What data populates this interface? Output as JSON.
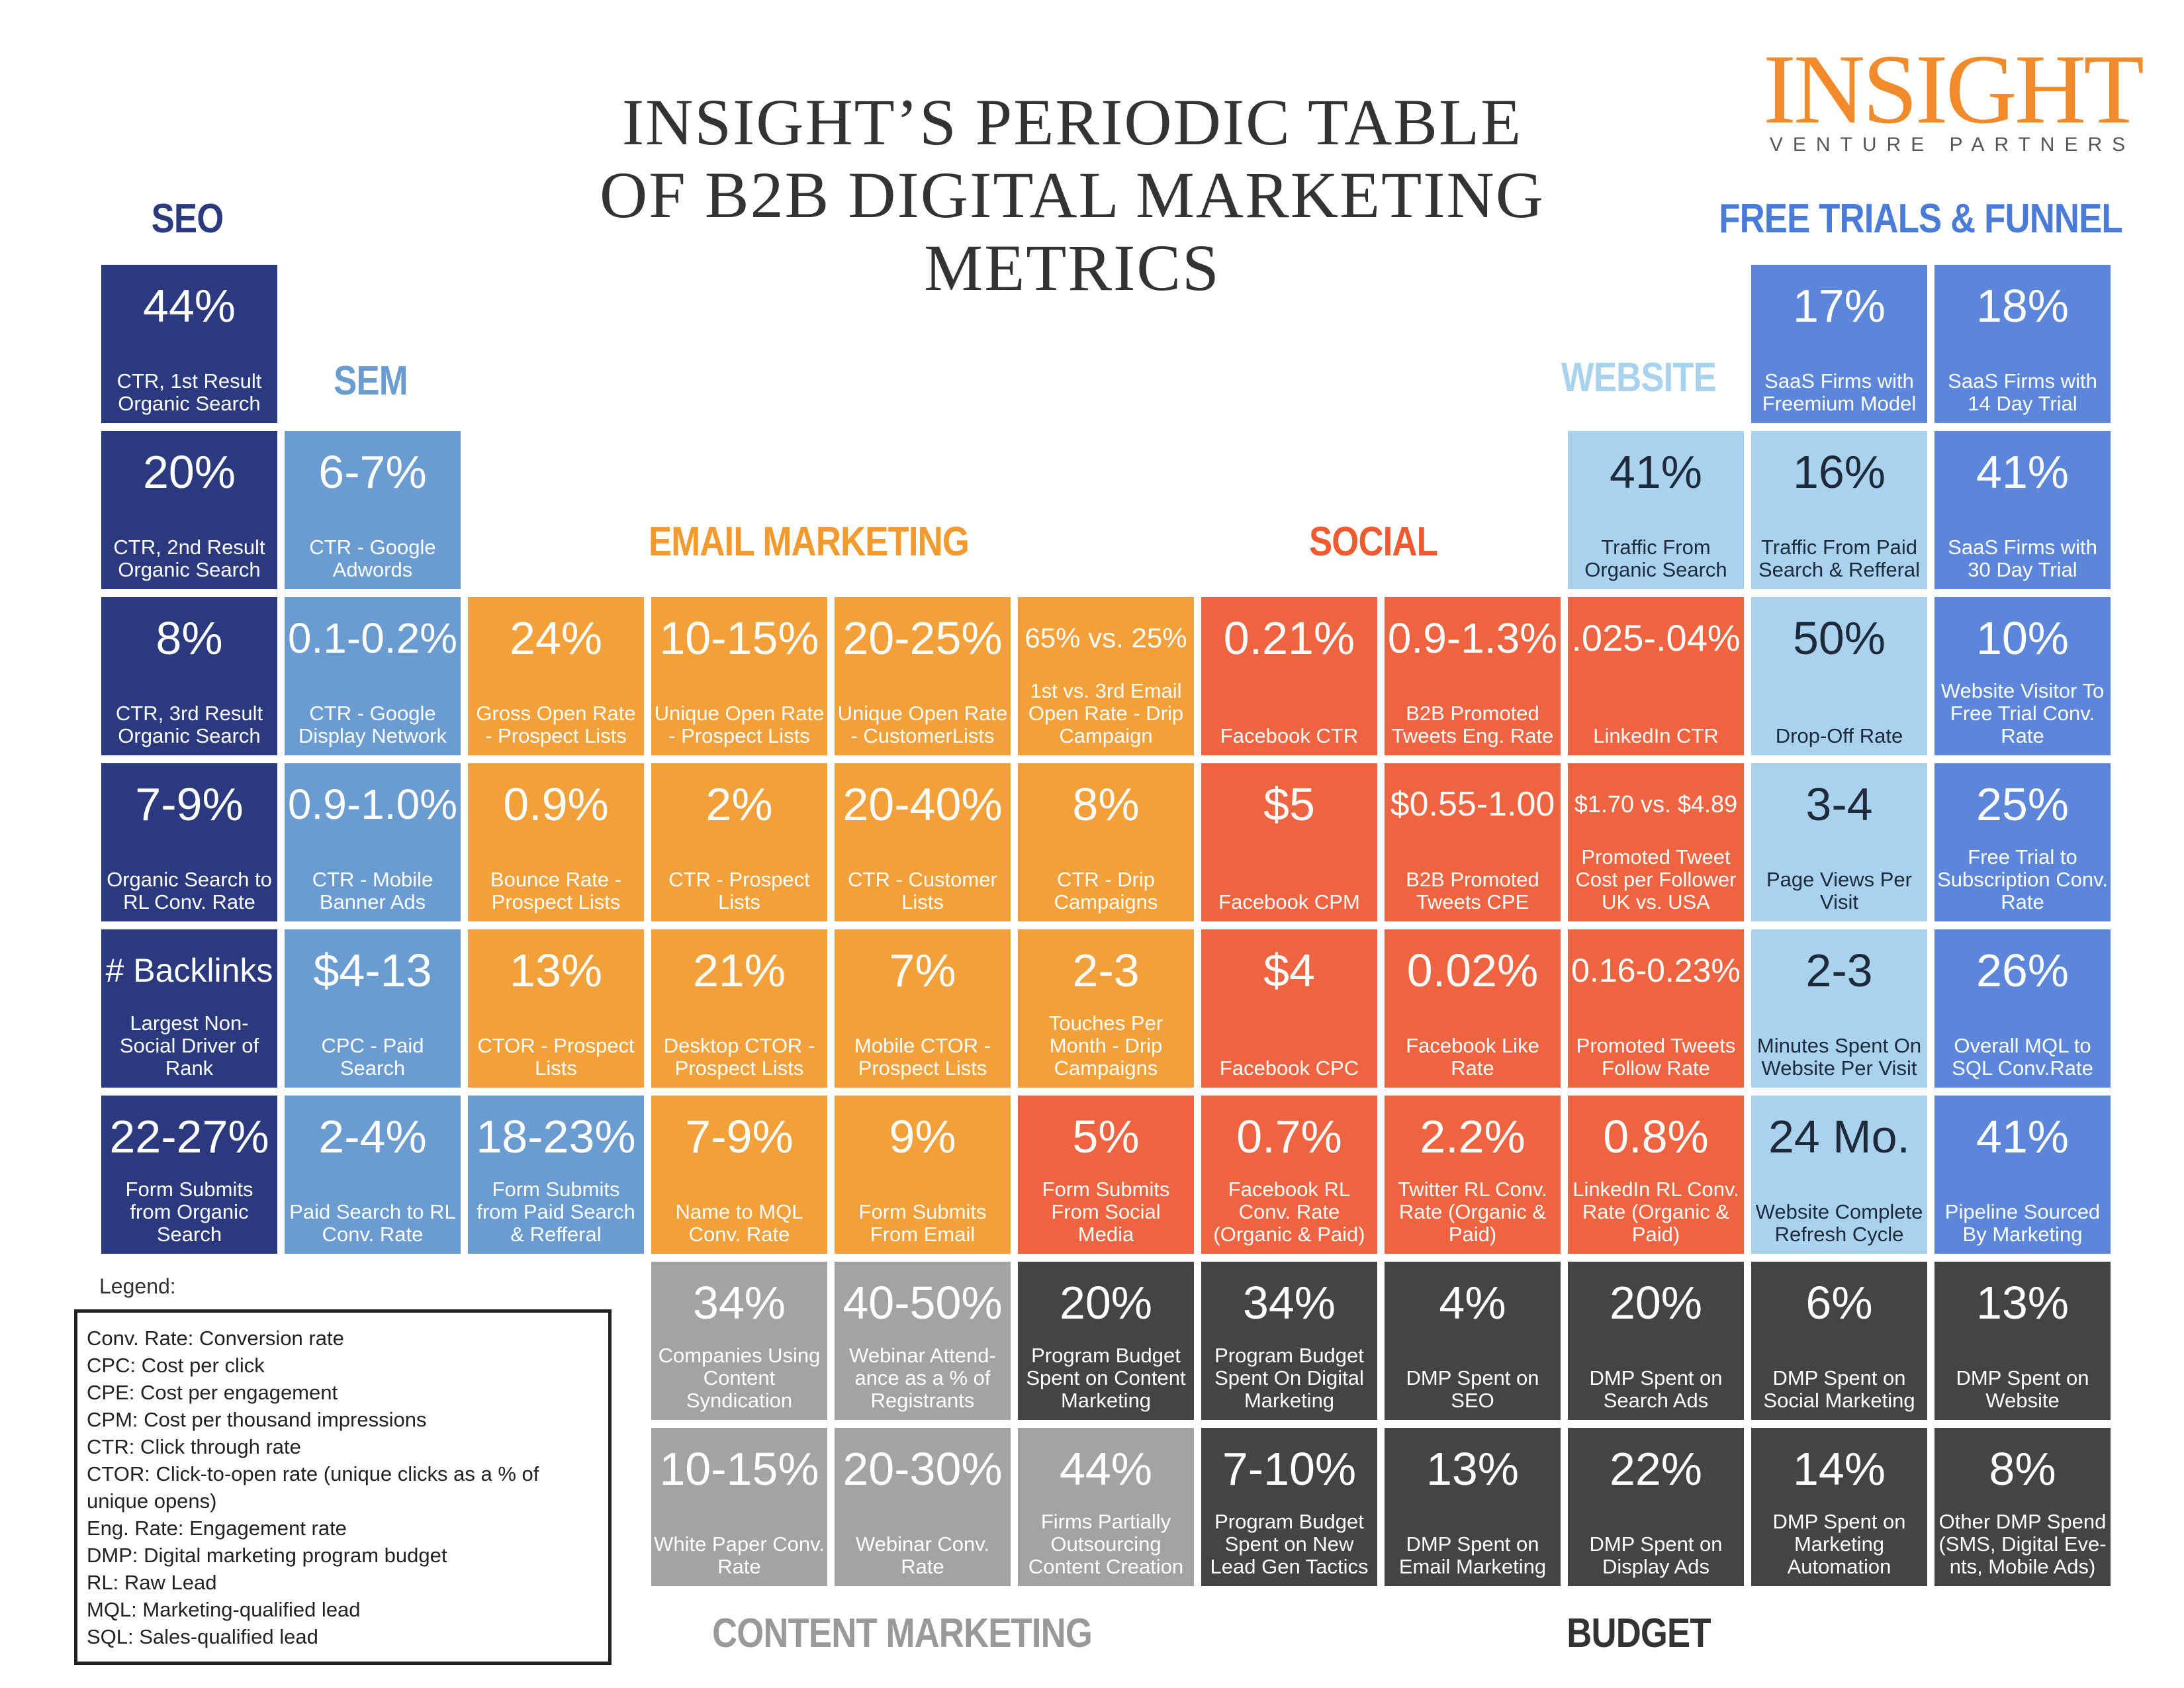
{
  "title": [
    "INSIGHT’S PERIODIC TABLE",
    "OF B2B DIGITAL MARKETING",
    "METRICS"
  ],
  "logo": {
    "name": "INSIGHT",
    "tagline": "VENTURE PARTNERS"
  },
  "headings": {
    "seo": "SEO",
    "sem": "SEM",
    "email": "EMAIL MARKETING",
    "social": "SOCIAL",
    "website": "WEBSITE",
    "funnel": "FREE TRIALS & FUNNEL",
    "content": "CONTENT MARKETING",
    "budget": "BUDGET"
  },
  "cells": [
    {
      "value": "44%",
      "label": "CTR, 1st Result Organic Search"
    },
    {
      "value": "17%",
      "label": "SaaS Firms with Freemium Model"
    },
    {
      "value": "18%",
      "label": "SaaS Firms with 14 Day Trial"
    },
    {
      "value": "20%",
      "label": "CTR, 2nd Result Organic Search"
    },
    {
      "value": "6-7%",
      "label": "CTR - Google Adwords"
    },
    {
      "value": "41%",
      "label": "Traffic From Organic Search"
    },
    {
      "value": "16%",
      "label": "Traffic From Paid Search & Refferal"
    },
    {
      "value": "41%",
      "label": "SaaS Firms with 30 Day Trial"
    },
    {
      "value": "8%",
      "label": "CTR, 3rd Result Organic Search"
    },
    {
      "value": "0.1-0.2%",
      "label": "CTR - Google Display Network"
    },
    {
      "value": "24%",
      "label": "Gross Open Rate - Prospect Lists"
    },
    {
      "value": "10-15%",
      "label": "Unique Open Rate - Prospect Lists"
    },
    {
      "value": "20-25%",
      "label": "Unique Open Rate - CustomerLists"
    },
    {
      "value": "65% vs. 25%",
      "label": "1st vs. 3rd Email Open Rate - Drip Campaign"
    },
    {
      "value": "0.21%",
      "label": "Facebook CTR"
    },
    {
      "value": "0.9-1.3%",
      "label": "B2B Promoted Tweets Eng. Rate"
    },
    {
      "value": ".025-.04%",
      "label": "LinkedIn CTR"
    },
    {
      "value": "50%",
      "label": "Drop-Off Rate"
    },
    {
      "value": "10%",
      "label": "Website Visitor To Free Trial Conv. Rate"
    },
    {
      "value": "7-9%",
      "label": "Organic Search to RL Conv. Rate"
    },
    {
      "value": "0.9-1.0%",
      "label": "CTR - Mobile Banner Ads"
    },
    {
      "value": "0.9%",
      "label": "Bounce Rate - Prospect Lists"
    },
    {
      "value": "2%",
      "label": "CTR - Prospect Lists"
    },
    {
      "value": "20-40%",
      "label": "CTR - Customer Lists"
    },
    {
      "value": "8%",
      "label": "CTR - Drip Campaigns"
    },
    {
      "value": "$5",
      "label": "Facebook CPM"
    },
    {
      "value": "$0.55-1.00",
      "label": "B2B Promoted Tweets CPE"
    },
    {
      "value": "$1.70 vs. $4.89",
      "label": "Promoted Tweet Cost per Follower UK vs. USA"
    },
    {
      "value": "3-4",
      "label": "Page Views Per Visit"
    },
    {
      "value": "25%",
      "label": "Free Trial to Subscription Conv. Rate"
    },
    {
      "value": "# Backlinks",
      "label": "Largest Non-Social Driver of Rank"
    },
    {
      "value": "$4-13",
      "label": "CPC - Paid Search"
    },
    {
      "value": "13%",
      "label": "CTOR - Prospect Lists"
    },
    {
      "value": "21%",
      "label": "Desktop CTOR - Prospect Lists"
    },
    {
      "value": "7%",
      "label": "Mobile CTOR - Prospect Lists"
    },
    {
      "value": "2-3",
      "label": "Touches Per Month - Drip Campaigns"
    },
    {
      "value": "$4",
      "label": "Facebook CPC"
    },
    {
      "value": "0.02%",
      "label": "Facebook Like Rate"
    },
    {
      "value": "0.16-0.23%",
      "label": "Promoted Tweets Follow Rate"
    },
    {
      "value": "2-3",
      "label": "Minutes Spent On Website Per Visit"
    },
    {
      "value": "26%",
      "label": "Overall MQL to SQL Conv.Rate"
    },
    {
      "value": "22-27%",
      "label": "Form Submits from Organic Search"
    },
    {
      "value": "2-4%",
      "label": "Paid Search to RL Conv. Rate"
    },
    {
      "value": "18-23%",
      "label": "Form Submits from Paid Search & Refferal"
    },
    {
      "value": "7-9%",
      "label": "Name to MQL Conv. Rate"
    },
    {
      "value": "9%",
      "label": "Form Submits From Email"
    },
    {
      "value": "5%",
      "label": "Form Submits From Social Media"
    },
    {
      "value": "0.7%",
      "label": "Facebook RL Conv. Rate (Organic & Paid)"
    },
    {
      "value": "2.2%",
      "label": "Twitter RL Conv. Rate (Organic & Paid)"
    },
    {
      "value": "0.8%",
      "label": "LinkedIn RL Conv. Rate (Organic & Paid)"
    },
    {
      "value": "24 Mo.",
      "label": "Website Complete Refresh Cycle"
    },
    {
      "value": "41%",
      "label": "Pipeline Sourced By Marketing"
    },
    {
      "value": "34%",
      "label": "Companies Using Content Syndication"
    },
    {
      "value": "40-50%",
      "label": "Webinar Attend-ance as a % of Registrants"
    },
    {
      "value": "20%",
      "label": "Program Budget Spent on Content Marketing"
    },
    {
      "value": "34%",
      "label": "Program Budget Spent On Digital Marketing"
    },
    {
      "value": "4%",
      "label": "DMP Spent on SEO"
    },
    {
      "value": "20%",
      "label": "DMP Spent on Search Ads"
    },
    {
      "value": "6%",
      "label": "DMP Spent on Social Marketing"
    },
    {
      "value": "13%",
      "label": "DMP Spent on Website"
    },
    {
      "value": "10-15%",
      "label": "White Paper Conv. Rate"
    },
    {
      "value": "20-30%",
      "label": "Webinar Conv. Rate"
    },
    {
      "value": "44%",
      "label": "Firms Partially Outsourcing Content Creation"
    },
    {
      "value": "7-10%",
      "label": "Program Budget Spent on New Lead Gen Tactics"
    },
    {
      "value": "13%",
      "label": "DMP Spent on Email Marketing"
    },
    {
      "value": "22%",
      "label": "DMP Spent on Display Ads"
    },
    {
      "value": "14%",
      "label": "DMP Spent on Marketing Automation"
    },
    {
      "value": "8%",
      "label": "Other DMP Spend (SMS, Digital Eve-nts, Mobile Ads)"
    }
  ],
  "legend": {
    "title": "Legend:",
    "items": [
      "Conv. Rate: Conversion rate",
      "CPC: Cost per click",
      "CPE: Cost per engagement",
      "CPM: Cost per thousand impressions",
      "CTR: Click through rate",
      "CTOR: Click-to-open rate (unique clicks as a % of unique opens)",
      "Eng. Rate: Engagement rate",
      "DMP: Digital marketing program budget",
      "RL: Raw Lead",
      "MQL: Marketing-qualified lead",
      "SQL: Sales-qualified lead"
    ]
  }
}
